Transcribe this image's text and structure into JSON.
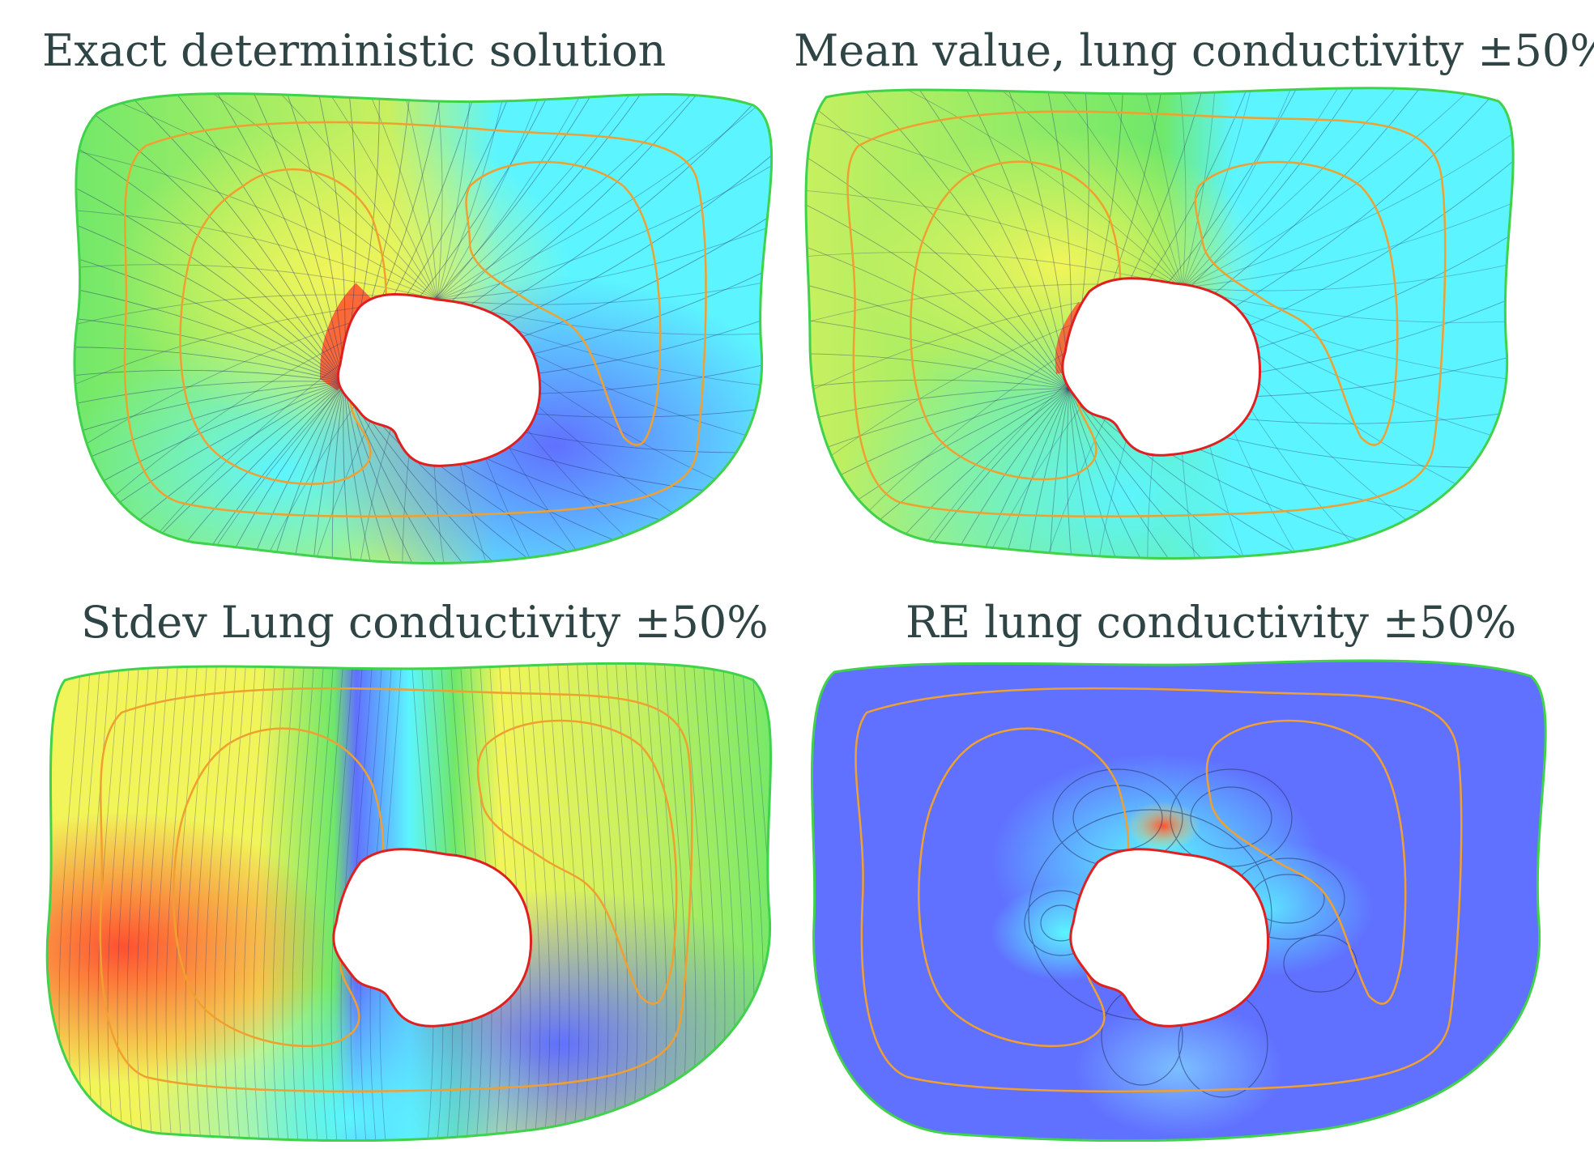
{
  "figure": {
    "panels": [
      {
        "id": "exact-deterministic",
        "title": "Exact deterministic solution"
      },
      {
        "id": "mean-value",
        "title": "Mean value, lung conductivity ±50%"
      },
      {
        "id": "stdev",
        "title": "Stdev Lung conductivity ±50%"
      },
      {
        "id": "relative-error",
        "title": "RE lung conductivity ±50%"
      }
    ]
  },
  "colors": {
    "boundary": "#3fd24a",
    "lung_contour": "#f0a030",
    "heart_contour": "#e02020",
    "red": "#ff5030",
    "yellow": "#f2f55a",
    "yellow_green": "#c8f060",
    "green": "#6fe86a",
    "cyan": "#5cf5ff",
    "light_blue": "#7ec8ff",
    "blue": "#6070ff",
    "isoline": "#24306a",
    "hole": "#ffffff"
  }
}
